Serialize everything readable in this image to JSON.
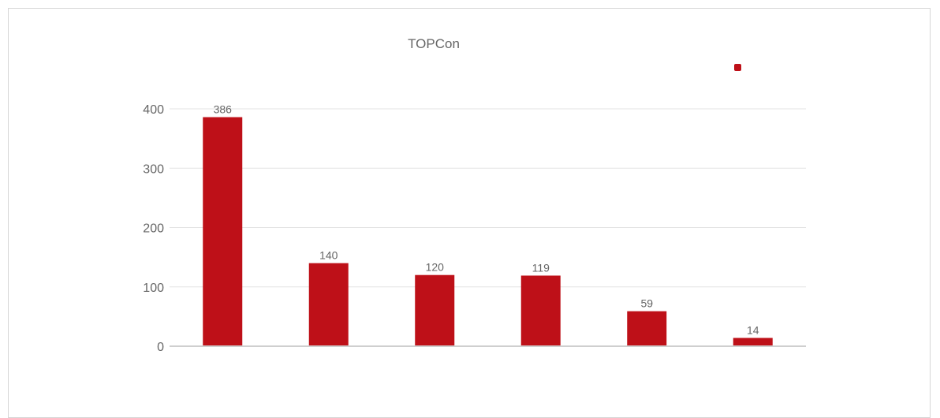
{
  "chart_data": {
    "type": "bar",
    "title": "TOPCon",
    "categories": [
      "",
      "",
      "",
      "",
      "",
      ""
    ],
    "values": [
      386,
      140,
      120,
      119,
      59,
      14
    ],
    "data_labels": [
      "386",
      "140",
      "120",
      "119",
      "59",
      "14"
    ],
    "yticks": [
      "0",
      "100",
      "200",
      "300",
      "400"
    ],
    "ylim": [
      0,
      400
    ],
    "grid": true,
    "legend": {
      "position": "top-right",
      "entries": [
        ""
      ]
    },
    "colors": {
      "bar": "#BE1018",
      "grid": "#e3e3e3",
      "axis": "#cfcfcf",
      "text": "#666666"
    }
  }
}
